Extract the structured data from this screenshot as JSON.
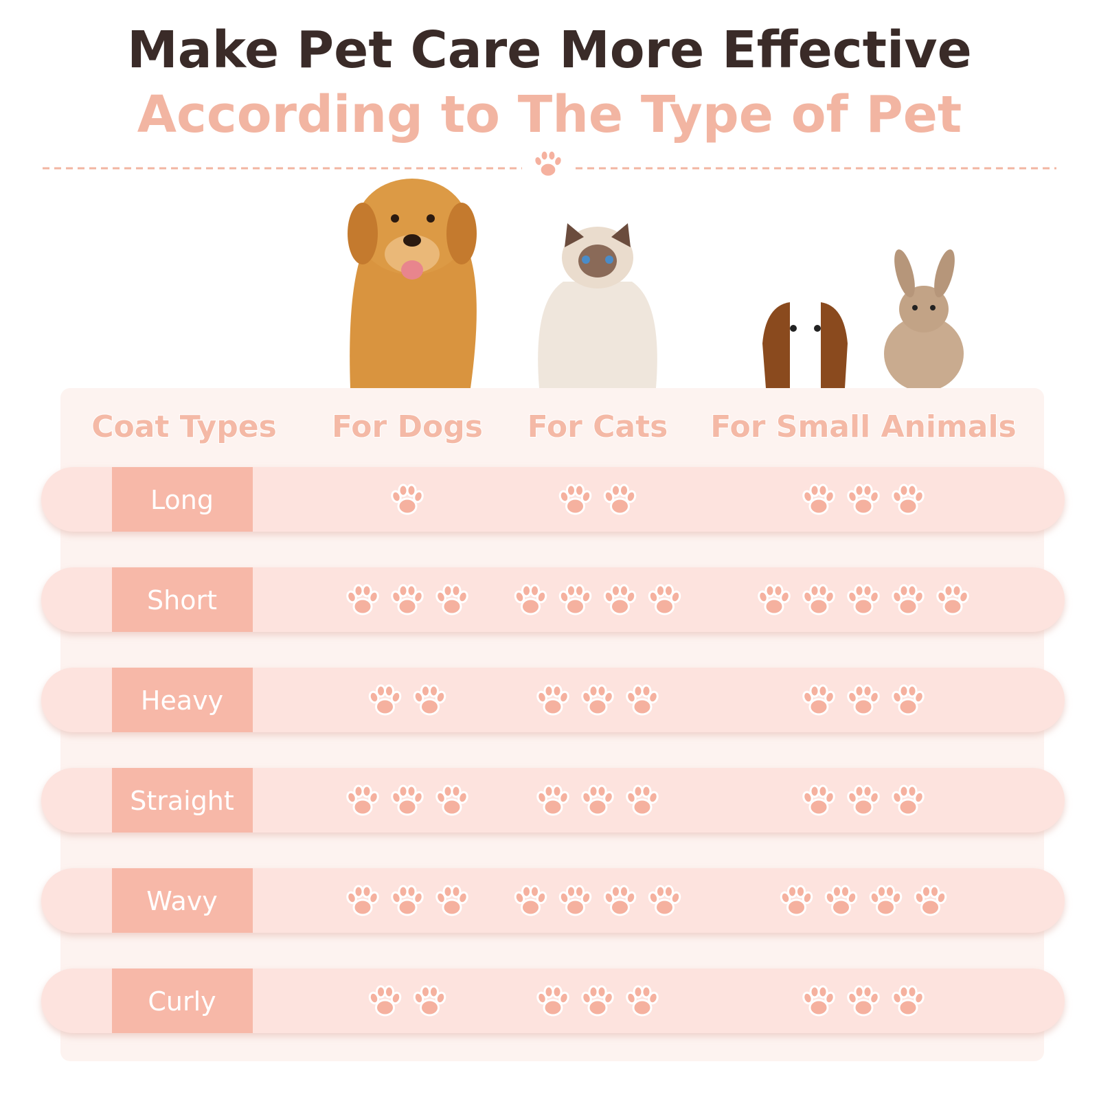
{
  "title": "Make Pet Care More Effective",
  "subtitle": "According to The Type of Pet",
  "table": {
    "header": [
      "Coat Types",
      "For Dogs",
      "For Cats",
      "For Small Animals"
    ],
    "rows": [
      {
        "label": "Long",
        "ratings": [
          1,
          2,
          3
        ]
      },
      {
        "label": "Short",
        "ratings": [
          3,
          4,
          5
        ]
      },
      {
        "label": "Heavy",
        "ratings": [
          2,
          3,
          3
        ]
      },
      {
        "label": "Straight",
        "ratings": [
          3,
          3,
          3
        ]
      },
      {
        "label": "Wavy",
        "ratings": [
          3,
          4,
          4
        ]
      },
      {
        "label": "Curly",
        "ratings": [
          2,
          3,
          3
        ]
      }
    ]
  }
}
